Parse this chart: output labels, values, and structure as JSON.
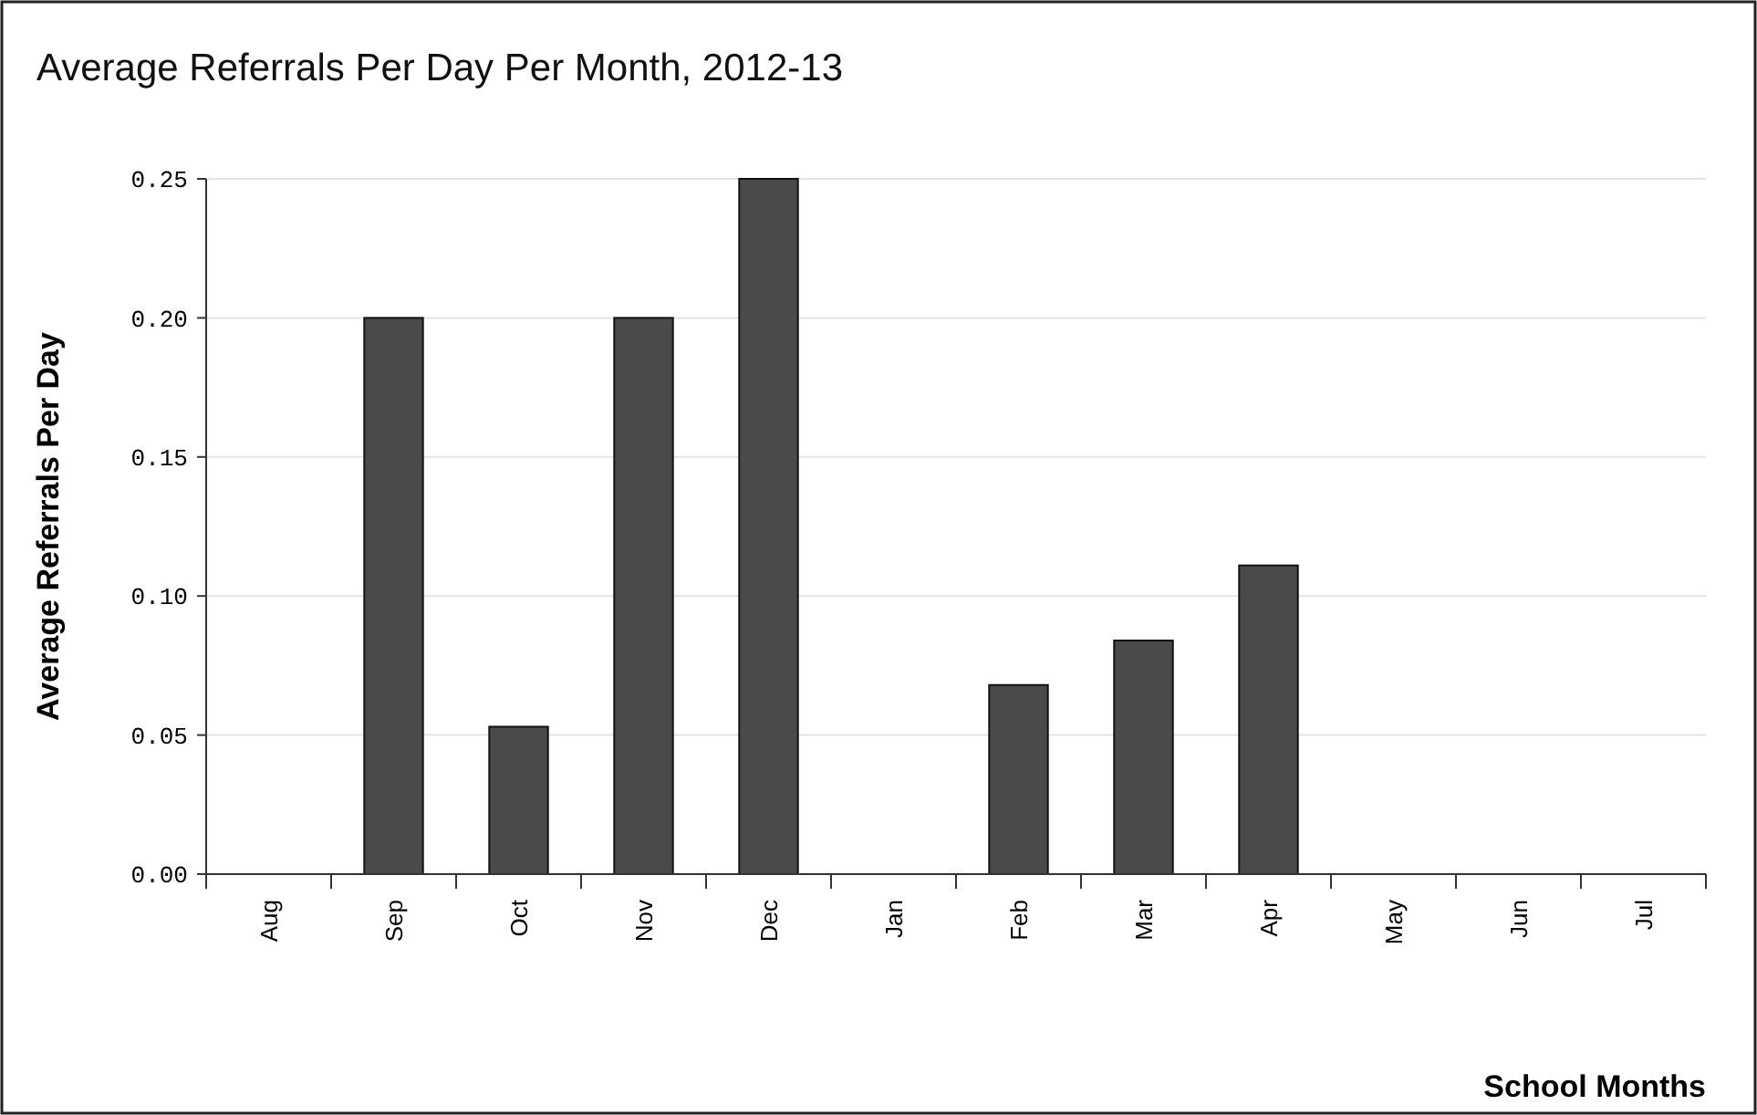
{
  "chart_data": {
    "type": "bar",
    "title": "Average Referrals Per Day Per Month, 2012-13",
    "xlabel": "School Months",
    "ylabel": "Average Referrals Per Day",
    "categories": [
      "Aug",
      "Sep",
      "Oct",
      "Nov",
      "Dec",
      "Jan",
      "Feb",
      "Mar",
      "Apr",
      "May",
      "Jun",
      "Jul"
    ],
    "values": [
      0,
      0.2,
      0.053,
      0.2,
      0.25,
      0,
      0.068,
      0.084,
      0.111,
      0,
      0,
      0
    ],
    "color": "#4a4a4a",
    "ylim": [
      0,
      0.25
    ],
    "yticks": [
      {
        "value": 0,
        "label": "0.00"
      },
      {
        "value": 0.05,
        "label": "0.05"
      },
      {
        "value": 0.1,
        "label": "0.10"
      },
      {
        "value": 0.15,
        "label": "0.15"
      },
      {
        "value": 0.2,
        "label": "0.20"
      },
      {
        "value": 0.25,
        "label": "0.25"
      }
    ],
    "grid": "y"
  }
}
